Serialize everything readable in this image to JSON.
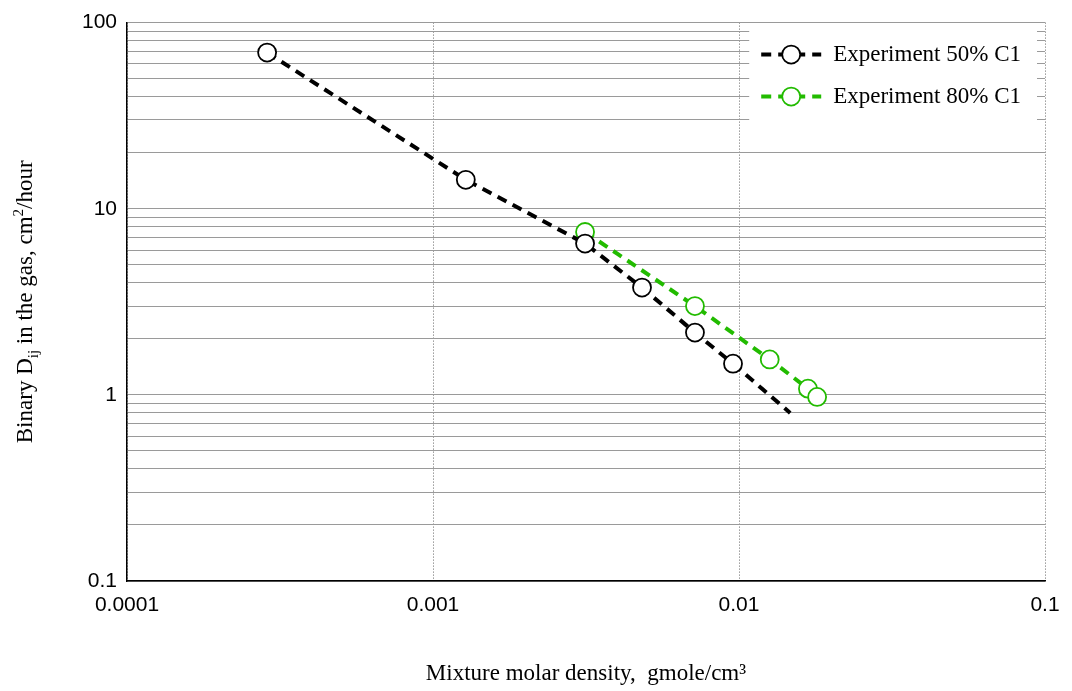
{
  "chart_data": {
    "type": "line",
    "xlabel": "Mixture molar density,  gmole/cm³",
    "ylabel": "Binary D$_{ij}$ in the gas, cm$^{2}$/hour",
    "log": "xy",
    "grid": true,
    "legend": "top right",
    "marker": "circle",
    "line_style": "dashed",
    "xlim": [
      0.0001,
      0.1
    ],
    "xticks": [
      0.0001,
      0.001,
      0.01,
      0.1
    ],
    "ylim": [
      0.1,
      100
    ],
    "yticks": [
      0.1,
      {
        "value": 0.2,
        "label": null
      },
      {
        "value": 0.3,
        "label": null
      },
      {
        "value": 0.4,
        "label": null
      },
      {
        "value": 0.5,
        "label": null
      },
      {
        "value": 0.6,
        "label": null
      },
      {
        "value": 0.7,
        "label": null
      },
      {
        "value": 0.8,
        "label": null
      },
      {
        "value": 0.9,
        "label": null
      },
      1,
      {
        "value": 2,
        "label": null
      },
      {
        "value": 3,
        "label": null
      },
      {
        "value": 4,
        "label": null
      },
      {
        "value": 5,
        "label": null
      },
      {
        "value": 6,
        "label": null
      },
      {
        "value": 7,
        "label": null
      },
      {
        "value": 8,
        "label": null
      },
      {
        "value": 9,
        "label": null
      },
      10,
      {
        "value": 20,
        "label": null
      },
      {
        "value": 30,
        "label": null
      },
      {
        "value": 40,
        "label": null
      },
      {
        "value": 50,
        "label": null
      },
      {
        "value": 60,
        "label": null
      },
      {
        "value": 70,
        "label": null
      },
      {
        "value": 80,
        "label": null
      },
      {
        "value": 90,
        "label": null
      },
      100
    ],
    "series": [
      {
        "name": "Experiment 50% C1",
        "color": "#000000",
        "x": [
          0.000287,
          0.00128,
          0.00314,
          0.00482,
          0.00718,
          0.00956
        ],
        "values": [
          69,
          14.3,
          6.5,
          3.77,
          2.16,
          1.47
        ]
      },
      {
        "name": "Experiment 80% C1",
        "color": "#22bb00",
        "x": [
          0.00314,
          0.00718,
          0.0126,
          0.0168,
          0.018
        ],
        "values": [
          7.5,
          3.0,
          1.55,
          1.08,
          0.975
        ]
      },
      {
        "color": "#000000",
        "marker": "none",
        "x": [
          0.00956,
          0.0147
        ],
        "values": [
          1.47,
          0.8
        ]
      }
    ]
  }
}
